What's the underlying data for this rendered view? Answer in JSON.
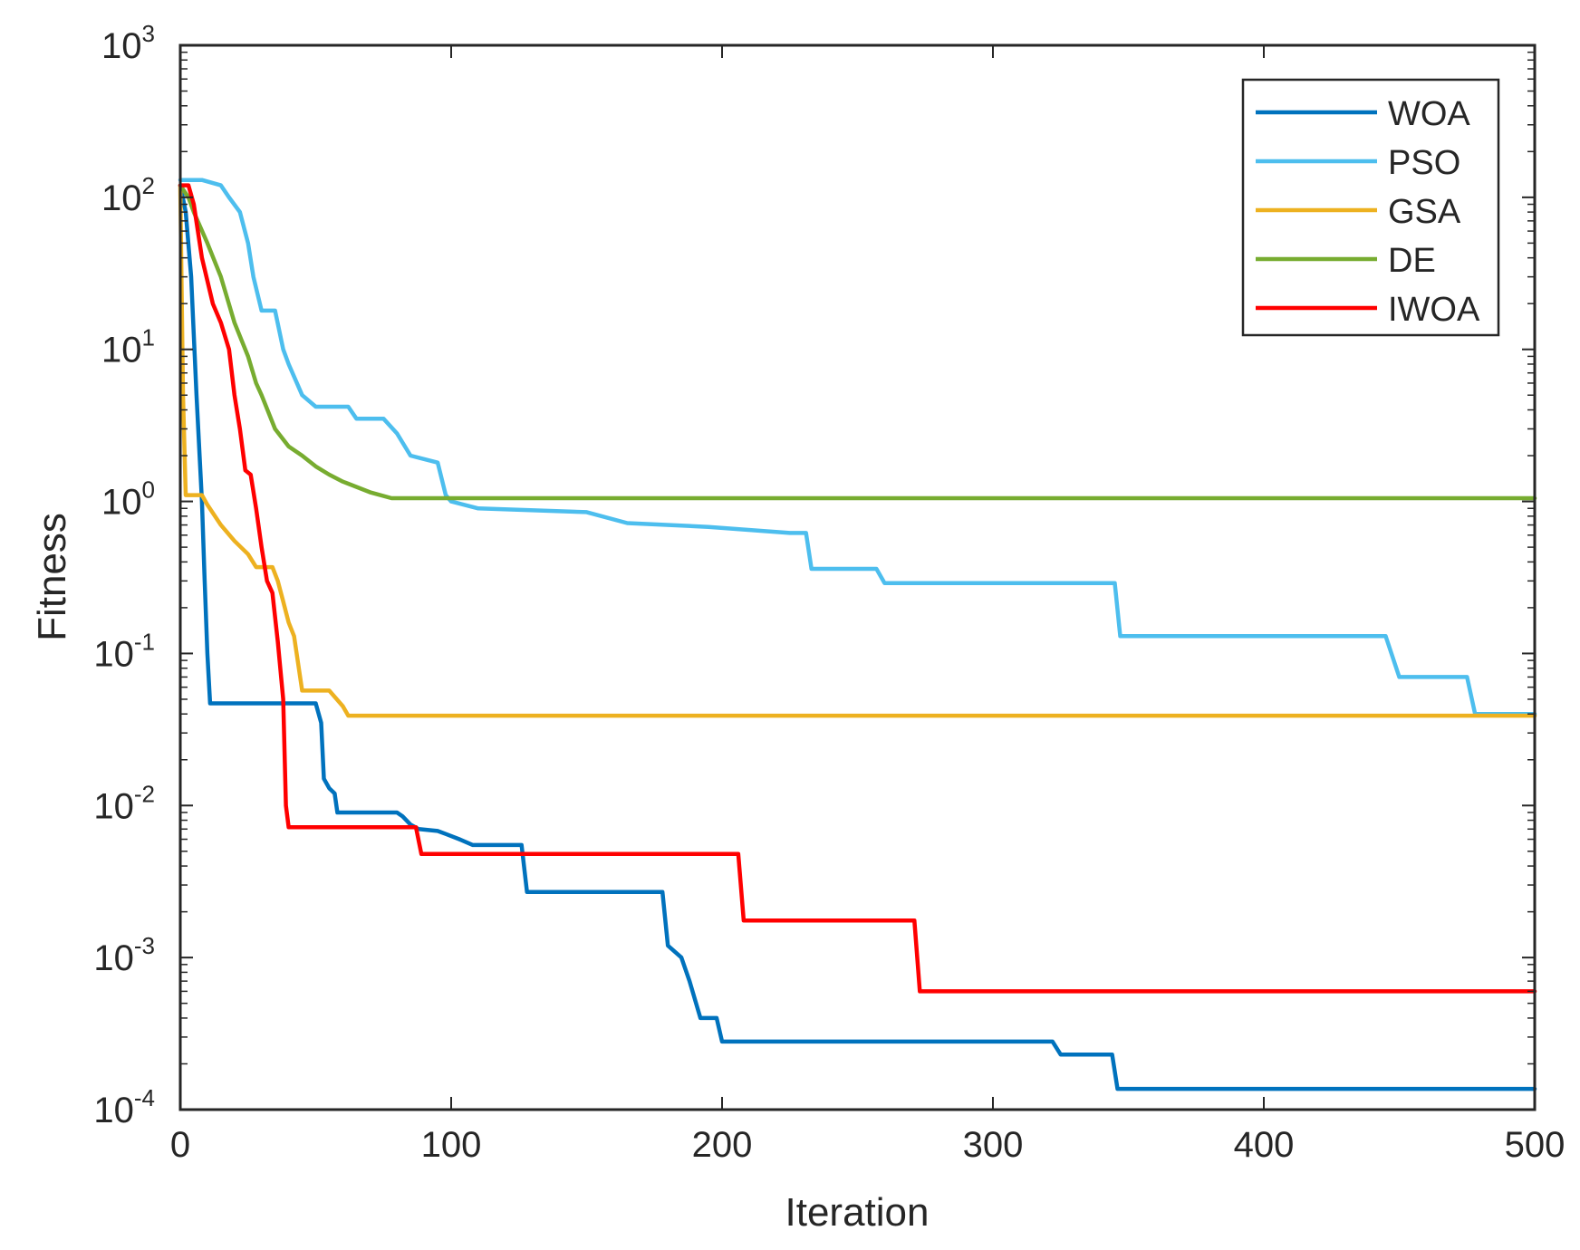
{
  "chart_data": {
    "type": "line",
    "xlabel": "Iteration",
    "ylabel": "Fitness",
    "xscale": "linear",
    "yscale": "log",
    "xlim": [
      0,
      500
    ],
    "ylim": [
      0.0001,
      1000
    ],
    "xticks": [
      0,
      100,
      200,
      300,
      400,
      500
    ],
    "xtick_labels": [
      "0",
      "100",
      "200",
      "300",
      "400",
      "500"
    ],
    "yticks": [
      {
        "value": 0.0001,
        "base": "10",
        "exp": "-4"
      },
      {
        "value": 0.001,
        "base": "10",
        "exp": "-3"
      },
      {
        "value": 0.01,
        "base": "10",
        "exp": "-2"
      },
      {
        "value": 0.1,
        "base": "10",
        "exp": "-1"
      },
      {
        "value": 1,
        "base": "10",
        "exp": "0"
      },
      {
        "value": 10,
        "base": "10",
        "exp": "1"
      },
      {
        "value": 100,
        "base": "10",
        "exp": "2"
      },
      {
        "value": 1000,
        "base": "10",
        "exp": "3"
      }
    ],
    "legend_position": "top-right",
    "series": [
      {
        "name": "WOA",
        "color": "#0072BD",
        "points": [
          [
            0,
            120
          ],
          [
            2,
            80
          ],
          [
            4,
            30
          ],
          [
            6,
            5
          ],
          [
            8,
            1
          ],
          [
            9,
            0.3
          ],
          [
            10,
            0.1
          ],
          [
            11,
            0.047
          ],
          [
            50,
            0.047
          ],
          [
            52,
            0.035
          ],
          [
            53,
            0.015
          ],
          [
            55,
            0.013
          ],
          [
            57,
            0.012
          ],
          [
            58,
            0.009
          ],
          [
            80,
            0.009
          ],
          [
            82,
            0.0085
          ],
          [
            85,
            0.0075
          ],
          [
            88,
            0.007
          ],
          [
            95,
            0.0068
          ],
          [
            98,
            0.0065
          ],
          [
            103,
            0.006
          ],
          [
            108,
            0.0055
          ],
          [
            126,
            0.0055
          ],
          [
            128,
            0.0027
          ],
          [
            178,
            0.0027
          ],
          [
            180,
            0.0012
          ],
          [
            185,
            0.001
          ],
          [
            188,
            0.0007
          ],
          [
            192,
            0.0004
          ],
          [
            198,
            0.0004
          ],
          [
            200,
            0.00028
          ],
          [
            322,
            0.00028
          ],
          [
            325,
            0.00023
          ],
          [
            344,
            0.00023
          ],
          [
            346,
            0.000137
          ],
          [
            500,
            0.000137
          ]
        ]
      },
      {
        "name": "PSO",
        "color": "#4DBEEE",
        "points": [
          [
            0,
            130
          ],
          [
            8,
            130
          ],
          [
            15,
            120
          ],
          [
            18,
            100
          ],
          [
            22,
            80
          ],
          [
            25,
            50
          ],
          [
            27,
            30
          ],
          [
            30,
            18
          ],
          [
            35,
            18
          ],
          [
            38,
            10
          ],
          [
            40,
            8
          ],
          [
            45,
            5
          ],
          [
            50,
            4.2
          ],
          [
            62,
            4.2
          ],
          [
            65,
            3.5
          ],
          [
            75,
            3.5
          ],
          [
            80,
            2.8
          ],
          [
            85,
            2
          ],
          [
            95,
            1.8
          ],
          [
            98,
            1.1
          ],
          [
            100,
            1.0
          ],
          [
            110,
            0.9
          ],
          [
            150,
            0.85
          ],
          [
            165,
            0.72
          ],
          [
            195,
            0.68
          ],
          [
            225,
            0.62
          ],
          [
            231,
            0.62
          ],
          [
            233,
            0.36
          ],
          [
            257,
            0.36
          ],
          [
            260,
            0.29
          ],
          [
            345,
            0.29
          ],
          [
            347,
            0.13
          ],
          [
            445,
            0.13
          ],
          [
            450,
            0.07
          ],
          [
            475,
            0.07
          ],
          [
            478,
            0.04
          ],
          [
            500,
            0.04
          ]
        ]
      },
      {
        "name": "GSA",
        "color": "#EDB120",
        "points": [
          [
            0,
            120
          ],
          [
            1,
            5
          ],
          [
            2,
            1.1
          ],
          [
            8,
            1.1
          ],
          [
            10,
            0.95
          ],
          [
            15,
            0.7
          ],
          [
            20,
            0.55
          ],
          [
            25,
            0.45
          ],
          [
            28,
            0.37
          ],
          [
            34,
            0.37
          ],
          [
            36,
            0.3
          ],
          [
            38,
            0.22
          ],
          [
            40,
            0.16
          ],
          [
            42,
            0.13
          ],
          [
            45,
            0.057
          ],
          [
            55,
            0.057
          ],
          [
            60,
            0.045
          ],
          [
            62,
            0.039
          ],
          [
            500,
            0.039
          ]
        ]
      },
      {
        "name": "DE",
        "color": "#77AC30",
        "points": [
          [
            0,
            120
          ],
          [
            3,
            100
          ],
          [
            5,
            80
          ],
          [
            10,
            50
          ],
          [
            15,
            30
          ],
          [
            20,
            15
          ],
          [
            25,
            9
          ],
          [
            28,
            6
          ],
          [
            30,
            5
          ],
          [
            35,
            3
          ],
          [
            40,
            2.3
          ],
          [
            45,
            2
          ],
          [
            50,
            1.7
          ],
          [
            55,
            1.5
          ],
          [
            60,
            1.35
          ],
          [
            70,
            1.15
          ],
          [
            78,
            1.05
          ],
          [
            100,
            1.05
          ],
          [
            120,
            1.05
          ],
          [
            500,
            1.05
          ]
        ]
      },
      {
        "name": "IWOA",
        "color": "#FF0000",
        "points": [
          [
            0,
            120
          ],
          [
            3,
            120
          ],
          [
            5,
            90
          ],
          [
            8,
            40
          ],
          [
            12,
            20
          ],
          [
            15,
            15
          ],
          [
            18,
            10
          ],
          [
            20,
            5
          ],
          [
            22,
            3
          ],
          [
            24,
            1.6
          ],
          [
            26,
            1.5
          ],
          [
            28,
            0.9
          ],
          [
            30,
            0.5
          ],
          [
            32,
            0.3
          ],
          [
            34,
            0.25
          ],
          [
            36,
            0.12
          ],
          [
            38,
            0.05
          ],
          [
            39,
            0.01
          ],
          [
            40,
            0.0072
          ],
          [
            87,
            0.0072
          ],
          [
            89,
            0.0048
          ],
          [
            206,
            0.0048
          ],
          [
            208,
            0.00175
          ],
          [
            271,
            0.00175
          ],
          [
            273,
            0.0006
          ],
          [
            500,
            0.0006
          ]
        ]
      }
    ]
  }
}
